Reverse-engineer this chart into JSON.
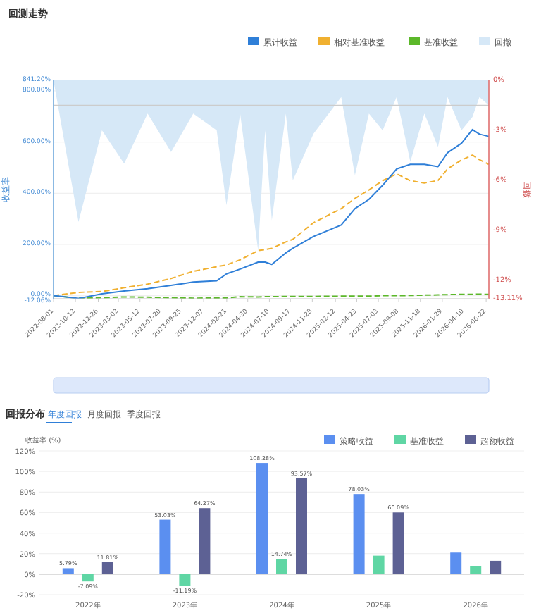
{
  "chart_data": [
    {
      "type": "line",
      "title": "回测走势",
      "ylabel": "收益率",
      "y2label": "回撤",
      "legend": "top right",
      "grid": "y",
      "x": [
        "2022-08-01",
        "2022-10-22",
        "2023-01-07",
        "2023-03-21",
        "2023-06-06",
        "2023-08-22",
        "2023-11-03",
        "2024-01-19",
        "2024-02-20",
        "2024-04-05",
        "2024-06-03",
        "2024-06-26",
        "2024-07-18",
        "2024-09-02",
        "2024-09-25",
        "2024-12-02",
        "2025-03-03",
        "2025-04-17",
        "2025-06-02",
        "2025-07-17",
        "2025-09-01",
        "2025-10-16",
        "2025-12-01",
        "2026-01-15",
        "2026-02-15",
        "2026-04-02",
        "2026-05-08",
        "2026-05-31",
        "2026-07-01"
      ],
      "series": [
        {
          "name": "回撤",
          "type": "area",
          "axis": "y2",
          "color": "#d6e8f7",
          "values": [
            0,
            -8.5,
            -3,
            -5,
            -2,
            -4.3,
            -2,
            -3,
            -7.5,
            -2,
            -10.2,
            -3,
            -8.4,
            -2,
            -6,
            -3.2,
            -1,
            -5.7,
            -2,
            -3,
            -1,
            -4.9,
            -2,
            -4,
            -1,
            -3,
            -2.2,
            -1,
            -1.5
          ]
        },
        {
          "name": "基准收益",
          "color": "#5cb82a",
          "line_style": "dashed",
          "values": [
            0,
            -10,
            -8,
            -5,
            -6,
            -8,
            -10,
            -9,
            -9,
            -4,
            -5,
            -4,
            -4,
            -3,
            -3,
            -3,
            -2,
            -2,
            -2,
            0,
            0,
            1,
            2,
            3,
            4,
            5,
            5,
            6,
            5
          ]
        },
        {
          "name": "相对基准收益",
          "color": "#f0b030",
          "line_style": "dashed",
          "values": [
            0,
            13,
            16,
            31,
            45,
            67,
            95,
            113,
            120,
            140,
            176,
            180,
            185,
            210,
            220,
            285,
            340,
            380,
            413,
            449,
            476,
            449,
            440,
            450,
            495,
            530,
            549,
            531,
            513
          ]
        },
        {
          "name": "累计收益",
          "color": "#2f7fd8",
          "values": [
            0,
            -11,
            7,
            18,
            27,
            40,
            53,
            58,
            85,
            104,
            131,
            131,
            122,
            167,
            185,
            231,
            276,
            340,
            376,
            431,
            495,
            513,
            513,
            504,
            558,
            595,
            649,
            631,
            622
          ]
        }
      ],
      "xlim": [
        "2022-08-01",
        "2026-07-01"
      ],
      "xticks": [
        "2022-08-01",
        "2022-10-12",
        "2022-12-26",
        "2023-03-02",
        "2023-05-12",
        "2023-07-20",
        "2023-09-25",
        "2023-12-07",
        "2024-02-21",
        "2024-04-30",
        "2024-07-10",
        "2024-09-17",
        "2024-11-28",
        "2025-02-12",
        "2025-04-23",
        "2025-07-03",
        "2025-09-08",
        "2025-11-18",
        "2026-01-29",
        "2026-04-10",
        "2026-06-22"
      ],
      "ylim": [
        -12.06,
        841.2
      ],
      "yticks": [
        {
          "value": -12.06,
          "label": "-12.06%"
        },
        {
          "value": 0,
          "label": "0.00%"
        },
        {
          "value": 200,
          "label": "200.00%"
        },
        {
          "value": 400,
          "label": "400.00%"
        },
        {
          "value": 600,
          "label": "600.00%"
        },
        {
          "value": 800,
          "label": "800.00%"
        },
        {
          "value": 841.2,
          "label": "841.20%"
        }
      ],
      "y2lim": [
        -13.11,
        0
      ],
      "y2ticks": [
        {
          "value": 0,
          "label": "0%"
        },
        {
          "value": -3,
          "label": "-3%"
        },
        {
          "value": -6,
          "label": "-6%"
        },
        {
          "value": -9,
          "label": "-9%"
        },
        {
          "value": -12,
          "label": "-12%"
        },
        {
          "value": -13.11,
          "label": "-13.11%"
        }
      ],
      "ref_lines": [
        {
          "axis": "y2",
          "value": -1.5,
          "color": "#cccccc"
        }
      ]
    },
    {
      "type": "bar",
      "title": "回报分布",
      "subtitle": "年度回报",
      "annotations": [
        "月度回报",
        "季度回报"
      ],
      "ylabel": "收益率 (%)",
      "legend": "top right",
      "grid": "y",
      "categories": [
        "2022年",
        "2023年",
        "2024年",
        "2025年",
        "2026年"
      ],
      "series": [
        {
          "name": "策略收益",
          "color": "#5b8ff0",
          "values": [
            5.79,
            53.03,
            108.28,
            78.03,
            21
          ],
          "value_labels": [
            "5.79%",
            "53.03%",
            "108.28%",
            "78.03%",
            null
          ]
        },
        {
          "name": "基准收益",
          "color": "#5fd6a4",
          "values": [
            -7.09,
            -11.19,
            14.74,
            18,
            8
          ],
          "value_labels": [
            "-7.09%",
            "-11.19%",
            "14.74%",
            null,
            null
          ]
        },
        {
          "name": "超额收益",
          "color": "#5d6194",
          "values": [
            11.81,
            64.27,
            93.57,
            60.09,
            13
          ],
          "value_labels": [
            "11.81%",
            "64.27%",
            "93.57%",
            "60.09%",
            null
          ]
        }
      ],
      "ylim": [
        -20,
        120
      ],
      "yticks": [
        {
          "value": -20,
          "label": "-20%"
        },
        {
          "value": 0,
          "label": "0%"
        },
        {
          "value": 20,
          "label": "20%"
        },
        {
          "value": 40,
          "label": "40%"
        },
        {
          "value": 60,
          "label": "60%"
        },
        {
          "value": 80,
          "label": "80%"
        },
        {
          "value": 100,
          "label": "100%"
        },
        {
          "value": 120,
          "label": "120%"
        }
      ]
    }
  ]
}
